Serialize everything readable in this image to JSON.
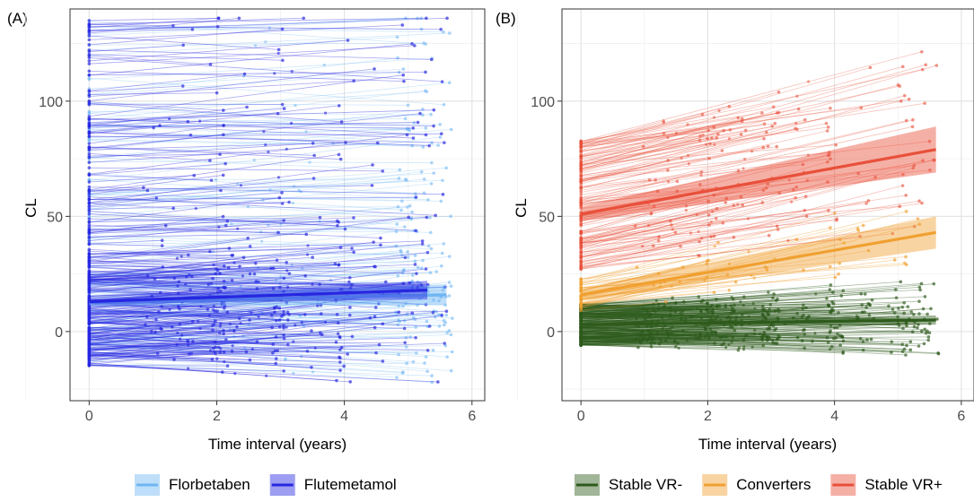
{
  "chart_data": [
    {
      "type": "line",
      "panel_label": "(A)",
      "xlabel": "Time interval (years)",
      "ylabel": "CL",
      "xlim": [
        -0.3,
        6.2
      ],
      "ylim": [
        -30,
        140
      ],
      "xticks": [
        0,
        2,
        4,
        6
      ],
      "yticks": [
        0,
        50,
        100
      ],
      "grid": true,
      "legend": "bottom",
      "series": [
        {
          "name": "Florbetaben",
          "color": "#6FB6F2",
          "fit_x": [
            0,
            5.6
          ],
          "fit_y": [
            12.5,
            16
          ],
          "band_halfwidth": [
            1.2,
            4.5
          ],
          "n_subjects": 170
        },
        {
          "name": "Flutemetamol",
          "color": "#2626E0",
          "fit_x": [
            0,
            5.3
          ],
          "fit_y": [
            13,
            18
          ],
          "band_halfwidth": [
            1.2,
            4.0
          ],
          "n_subjects": 330
        }
      ]
    },
    {
      "type": "line",
      "panel_label": "(B)",
      "xlabel": "Time interval (years)",
      "ylabel": "CL",
      "xlim": [
        -0.3,
        6.2
      ],
      "ylim": [
        -30,
        140
      ],
      "xticks": [
        0,
        2,
        4,
        6
      ],
      "yticks": [
        0,
        50,
        100
      ],
      "grid": true,
      "legend": "bottom",
      "series": [
        {
          "name": "Stable VR-",
          "color": "#2E5A1C",
          "fit_x": [
            0,
            5.6
          ],
          "fit_y": [
            3,
            5
          ],
          "band_halfwidth": [
            1.2,
            2.0
          ],
          "n_subjects": 330
        },
        {
          "name": "Converters",
          "color": "#F0A030",
          "fit_x": [
            0,
            5.6
          ],
          "fit_y": [
            16,
            43
          ],
          "band_halfwidth": [
            2.5,
            7.0
          ],
          "n_subjects": 45
        },
        {
          "name": "Stable VR+",
          "color": "#E8503A",
          "fit_x": [
            0,
            5.6
          ],
          "fit_y": [
            51,
            79
          ],
          "band_halfwidth": [
            3.0,
            10.0
          ],
          "n_subjects": 150
        }
      ]
    }
  ]
}
